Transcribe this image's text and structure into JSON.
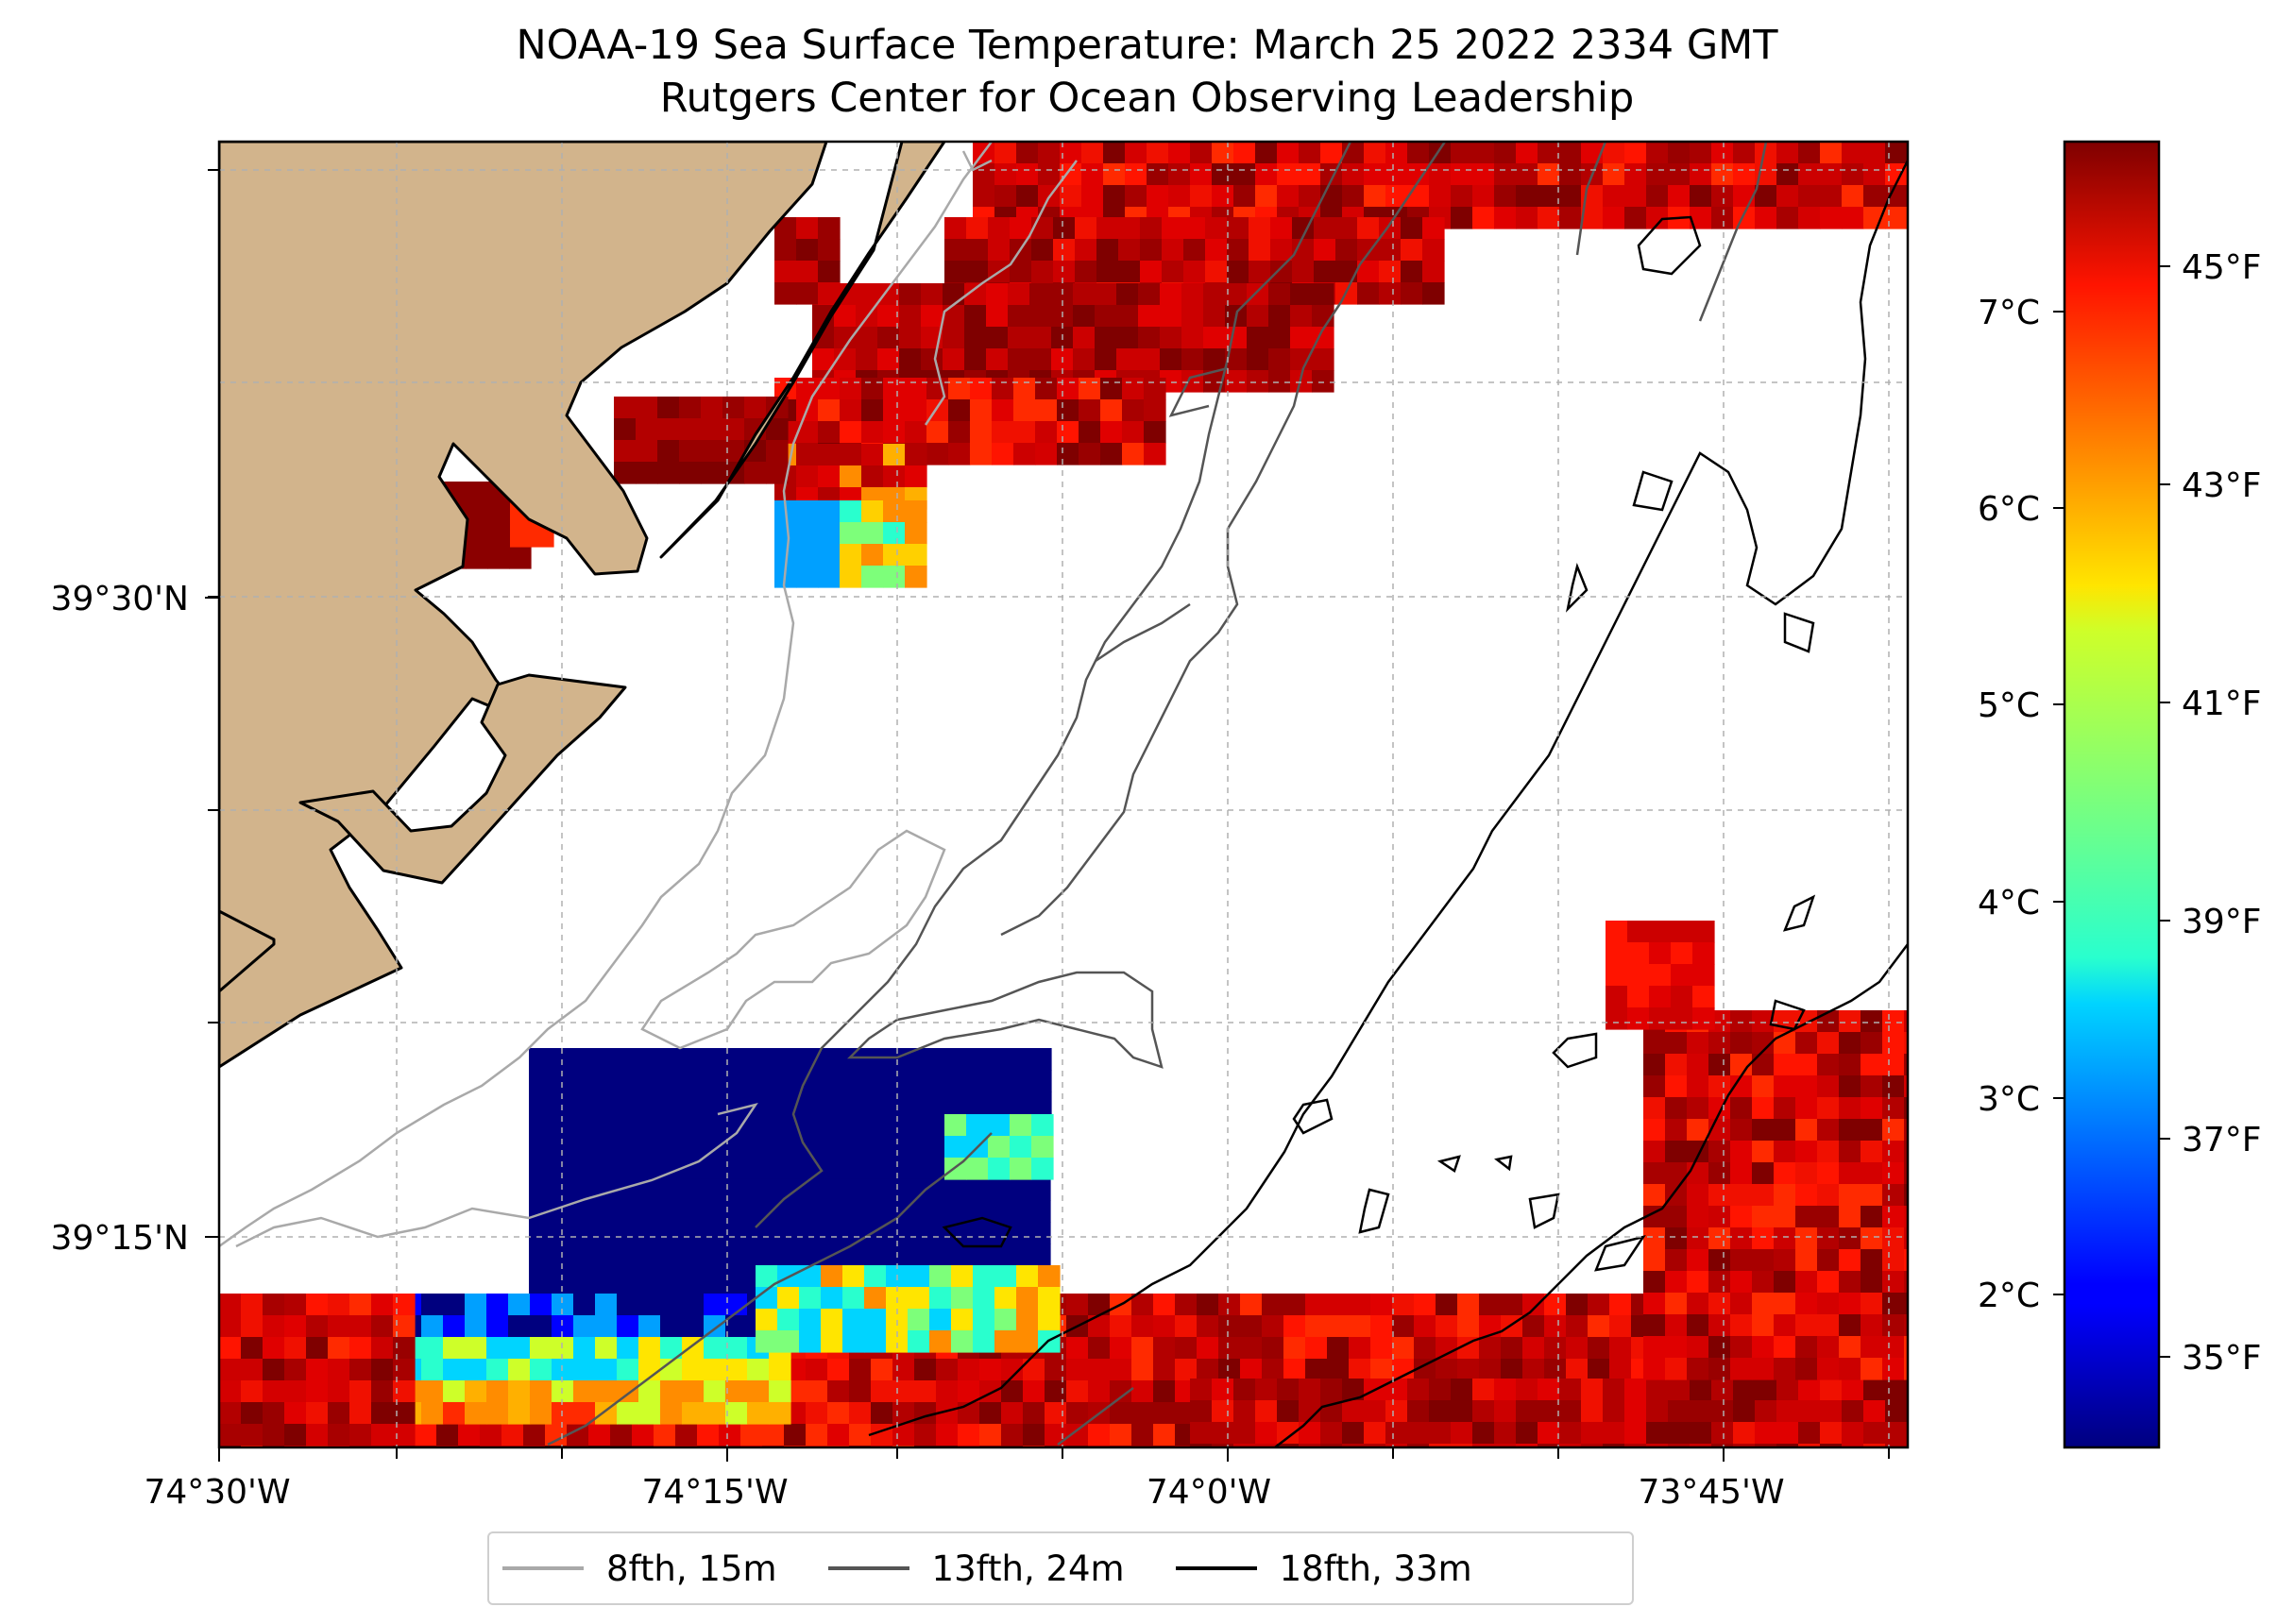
{
  "title": {
    "line1": "NOAA-19 Sea Surface Temperature: March 25 2022 2334 GMT",
    "line2": "Rutgers Center for Ocean Observing Leadership"
  },
  "map": {
    "lon_ticks": [
      "74°30'W",
      "74°15'W",
      "74°0'W",
      "73°45'W"
    ],
    "lat_ticks": [
      "39°30'N",
      "39°15'N"
    ],
    "land_color": "#d2b48c",
    "coast_color": "#000000"
  },
  "colorbar": {
    "celsius_ticks": [
      "7°C",
      "6°C",
      "5°C",
      "4°C",
      "3°C",
      "2°C"
    ],
    "fahrenheit_ticks": [
      "45°F",
      "43°F",
      "41°F",
      "39°F",
      "37°F",
      "35°F"
    ],
    "colormap": "jet",
    "range_c": [
      1.4,
      8.1
    ]
  },
  "legend": {
    "items": [
      {
        "label": "8fth, 15m",
        "color": "#a9a9a9"
      },
      {
        "label": "13fth, 24m",
        "color": "#555555"
      },
      {
        "label": "18fth, 33m",
        "color": "#000000"
      }
    ]
  }
}
